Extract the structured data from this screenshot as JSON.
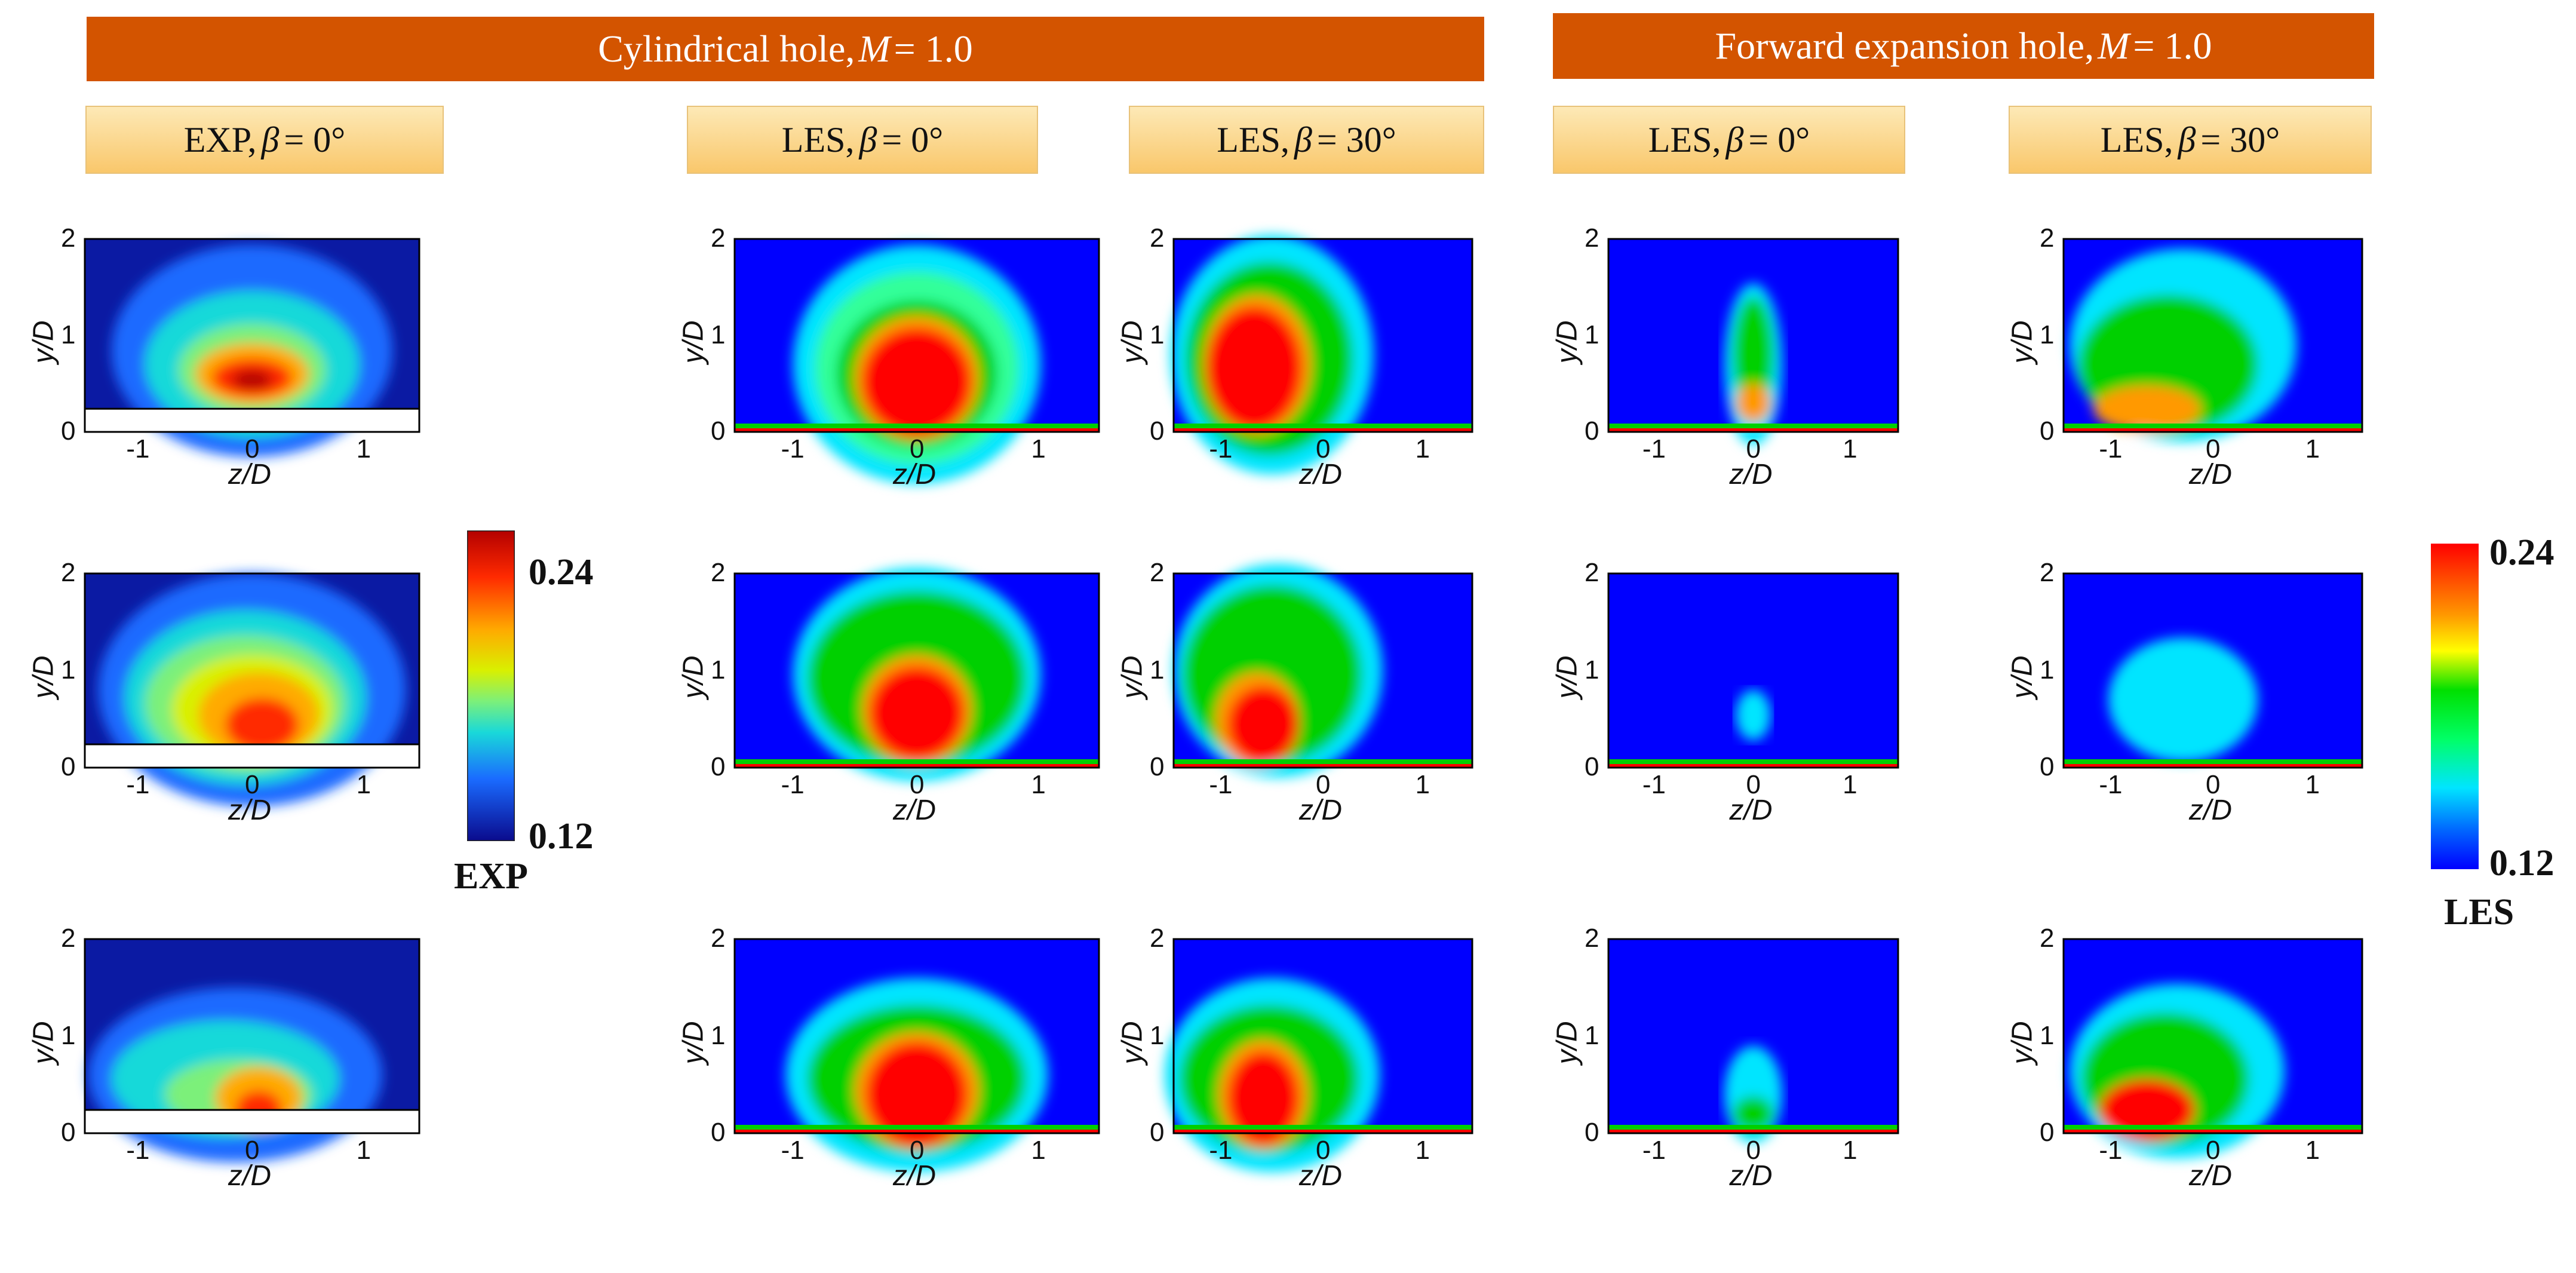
{
  "colors": {
    "banner": "#d35400",
    "label_bg_top": "#fde9b6",
    "label_bg_bottom": "#f9c76b",
    "field_blue": "#0000ff",
    "exp_blue": "#0b1aa3"
  },
  "banners": {
    "cylindrical": {
      "prefix": "Cylindrical hole,",
      "var": "M",
      "suffix": "= 1.0"
    },
    "forward": {
      "prefix": "Forward expansion hole,",
      "var": "M",
      "suffix": "= 1.0"
    }
  },
  "column_labels": [
    {
      "method": "EXP,",
      "angle": "= 0°"
    },
    {
      "method": "LES,",
      "angle": "= 0°"
    },
    {
      "method": "LES,",
      "angle": "= 30°"
    },
    {
      "method": "LES,",
      "angle": "= 0°"
    },
    {
      "method": "LES,",
      "angle": "= 30°"
    }
  ],
  "beta_symbol": "β",
  "axes": {
    "xlabel": "z/D",
    "ylabel": "y/D",
    "xticks": [
      "-1",
      "0",
      "1"
    ],
    "yticks": [
      "0",
      "1",
      "2"
    ],
    "xtick_values": [
      -1,
      0,
      1
    ],
    "ytick_values": [
      0,
      1,
      2
    ],
    "xlim": [
      -1.5,
      1.5
    ],
    "ylim": [
      0,
      2
    ]
  },
  "colorbars": {
    "exp": {
      "max": "0.24",
      "min": "0.12",
      "title": "EXP"
    },
    "les": {
      "max": "0.24",
      "min": "0.12",
      "title": "LES"
    }
  }
}
